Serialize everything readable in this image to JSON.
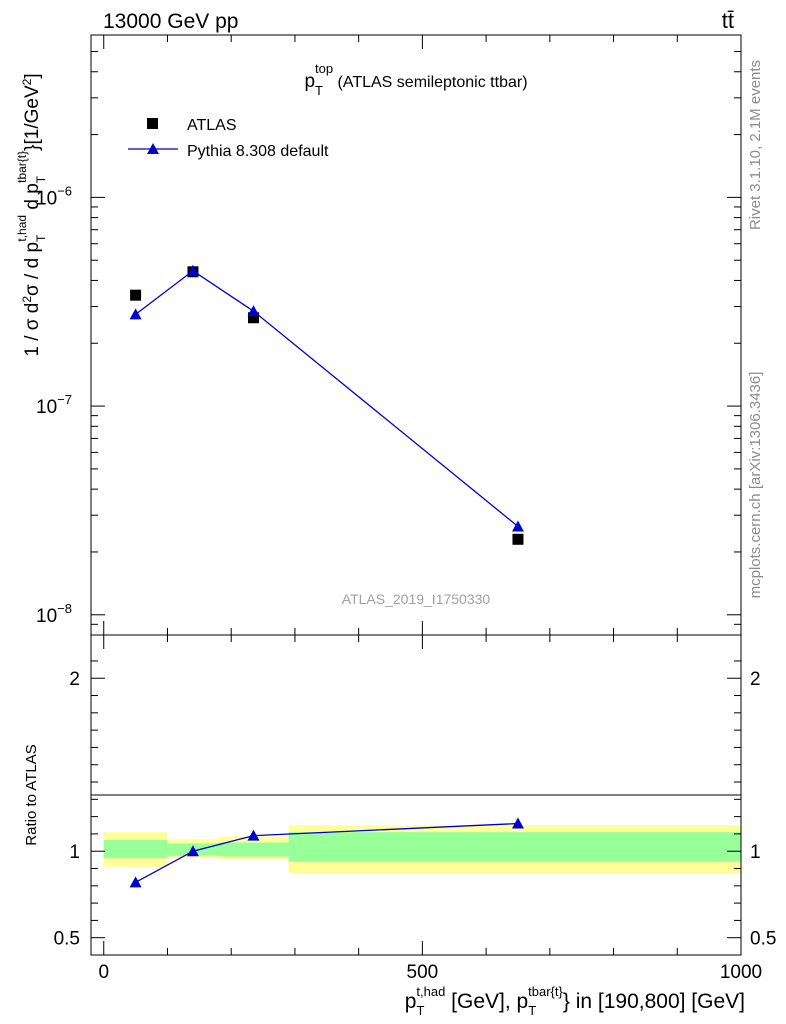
{
  "header": {
    "energy_label": "13000 GeV pp",
    "process_label": "tt̄"
  },
  "side": {
    "rivet_label": "Rivet 3.1.10,  2.1M events",
    "mcplots_label": "mcplots.cern.ch [arXiv:1306.3436]"
  },
  "chart_data": [
    {
      "type": "scatter",
      "panel": "main",
      "title": {
        "base": "p",
        "sub": "T",
        "sup": "top",
        "rest": " (ATLAS semileptonic ttbar)"
      },
      "analysis_label": "ATLAS_2019_I1750330",
      "ylabel": "1 / σ d²σ / d p_T^{t,had} d p_T^{tbar{t}} [1/GeV²]",
      "yscale": "log",
      "ylim": [
        8e-09,
        6e-06
      ],
      "xlim": [
        -20,
        1000
      ],
      "y_ticks": [
        {
          "value": 1e-08,
          "base": "10",
          "exp": "−8"
        },
        {
          "value": 1e-07,
          "base": "10",
          "exp": "−7"
        },
        {
          "value": 1e-06,
          "base": "10",
          "exp": "−6"
        }
      ],
      "legend": {
        "position": "top-left",
        "entries": [
          {
            "label": "ATLAS",
            "marker": "square",
            "color": "#000000"
          },
          {
            "label": "Pythia 8.308 default",
            "marker": "triangle",
            "color": "#0000cc"
          }
        ]
      },
      "series": [
        {
          "name": "ATLAS",
          "x": [
            50,
            140,
            235,
            650
          ],
          "y": [
            3.4e-07,
            4.4e-07,
            2.65e-07,
            2.3e-08
          ]
        },
        {
          "name": "Pythia 8.308 default",
          "x": [
            50,
            140,
            235,
            650
          ],
          "y": [
            2.75e-07,
            4.45e-07,
            2.85e-07,
            2.65e-08
          ]
        }
      ]
    },
    {
      "type": "line",
      "panel": "ratio",
      "ylabel": "Ratio to ATLAS",
      "xlabel": "p_T^{t,had} [GeV], p_T^{tbar{t}} in [190,800] [GeV]",
      "ylim": [
        0.4,
        2.25
      ],
      "xlim": [
        -20,
        1000
      ],
      "x_ticks": [
        {
          "value": 0,
          "label": "0"
        },
        {
          "value": 500,
          "label": "500"
        },
        {
          "value": 1000,
          "label": "1000"
        }
      ],
      "y_ticks": [
        {
          "value": 0.5,
          "label": "0.5"
        },
        {
          "value": 1,
          "label": "1"
        },
        {
          "value": 2,
          "label": "2"
        }
      ],
      "bands": [
        {
          "x0": 0,
          "x1": 100,
          "total": [
            0.91,
            1.11
          ],
          "stat": [
            0.96,
            1.065
          ]
        },
        {
          "x0": 100,
          "x1": 180,
          "total": [
            0.96,
            1.07
          ],
          "stat": [
            0.975,
            1.045
          ]
        },
        {
          "x0": 180,
          "x1": 290,
          "total": [
            0.955,
            1.085
          ],
          "stat": [
            0.97,
            1.05
          ]
        },
        {
          "x0": 290,
          "x1": 1000,
          "total": [
            0.87,
            1.15
          ],
          "stat": [
            0.94,
            1.11
          ]
        }
      ],
      "series": [
        {
          "name": "Pythia 8.308 default",
          "x": [
            50,
            140,
            235,
            650
          ],
          "y": [
            0.82,
            1.0,
            1.09,
            1.16
          ]
        }
      ],
      "colors": {
        "stat_band": "#99ff99",
        "total_band": "#ffff99",
        "mc": "#0000cc",
        "data": "#000000"
      }
    }
  ]
}
